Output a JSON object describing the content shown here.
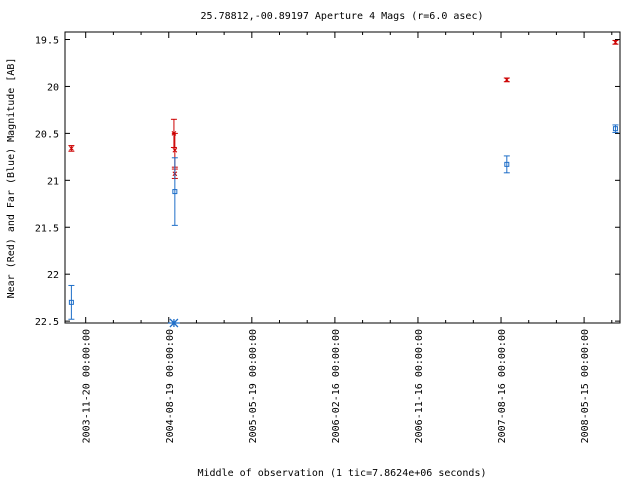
{
  "chart_data": {
    "type": "scatter",
    "title": "25.78812,-00.89197   Aperture 4 Mags (r=6.0 asec)",
    "xlabel": "Middle of observation (1 tic=7.8624e+06 seconds)",
    "ylabel": "Near (Red) and Far (Blue) Magnitude [AB]",
    "x_tick_labels": [
      "2003-11-20 00:00:00",
      "2004-08-19 00:00:00",
      "2005-05-19 00:00:00",
      "2006-02-16 00:00:00",
      "2006-11-16 00:00:00",
      "2007-08-16 00:00:00",
      "2008-05-15 00:00:00"
    ],
    "x_tick_dates": [
      "2003-11-20",
      "2004-08-19",
      "2005-05-19",
      "2006-02-16",
      "2006-11-16",
      "2007-08-16",
      "2008-05-15"
    ],
    "xlim": [
      "2003-09-13",
      "2008-09-10"
    ],
    "y_ticks": [
      "19.5",
      "20",
      "20.5",
      "21",
      "21.5",
      "22",
      "22.5"
    ],
    "ylim": [
      22.52,
      19.42
    ],
    "y_inverted": true,
    "series": [
      {
        "color": "#cc0000",
        "marker": "x",
        "points": [
          {
            "x": "2003-10-04",
            "y": 20.66,
            "err": 0.03
          },
          {
            "x": "2004-09-05",
            "y": 20.5,
            "err": 0.15
          },
          {
            "x": "2004-09-08",
            "y": 20.68,
            "err": 0.18
          },
          {
            "x": "2004-09-08",
            "y": 20.93,
            "err": 0.05
          },
          {
            "x": "2007-09-04",
            "y": 19.93,
            "err": 0.02
          },
          {
            "x": "2008-08-26",
            "y": 19.53,
            "err": 0.02
          }
        ]
      },
      {
        "color": "#1e6ec8",
        "marker": "square",
        "points": [
          {
            "x": "2003-10-04",
            "y": 22.3,
            "err": 0.18
          },
          {
            "x": "2004-09-08",
            "y": 21.12,
            "err": 0.36
          },
          {
            "x": "2007-09-04",
            "y": 20.83,
            "err": 0.09
          },
          {
            "x": "2008-08-26",
            "y": 20.45,
            "err": 0.04
          }
        ]
      },
      {
        "color": "#1e6ec8",
        "marker": "asterisk",
        "points": [
          {
            "x": "2004-09-05",
            "y": 22.52
          }
        ]
      }
    ]
  }
}
